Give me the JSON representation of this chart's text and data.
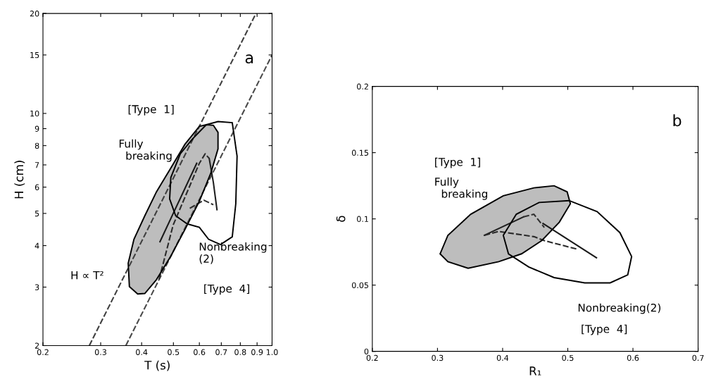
{
  "chart_data": [
    {
      "type": "line",
      "xlabel": "T (s)",
      "ylabel": "H (cm)",
      "log": "xy",
      "xlim": [
        0.2,
        1.0
      ],
      "ylim": [
        2,
        20
      ],
      "xticks": [
        0.2,
        0.3,
        0.4,
        0.5,
        0.6,
        0.7,
        0.8,
        0.9,
        {
          "value": 1.0,
          "label": "1.0"
        }
      ],
      "yticks": [
        2,
        3,
        4,
        5,
        6,
        7,
        8,
        9,
        10,
        15,
        20
      ],
      "grid": false,
      "legend": false,
      "series": [
        {
          "type": "area",
          "color": "#ffffff",
          "x": [
            0.63,
            0.684,
            0.756,
            0.782,
            0.775,
            0.756,
            0.696,
            0.64,
            0.6,
            0.551,
            0.508,
            0.487,
            0.491,
            0.525,
            0.57,
            0.63
          ],
          "values": [
            9.25,
            9.45,
            9.38,
            7.44,
            5.35,
            4.25,
            4.03,
            4.18,
            4.54,
            4.65,
            4.92,
            5.53,
            6.41,
            7.56,
            8.35,
            9.25
          ]
        },
        {
          "color": "#404040",
          "line_style": "dashed",
          "x": [
            0.277,
            0.893
          ],
          "values": [
            2,
            20
          ]
        },
        {
          "color": "#4a4a4a",
          "line_style": "dashed",
          "x": [
            0.358,
            1.0
          ],
          "values": [
            2,
            15.0
          ]
        },
        {
          "color": "#1a1a1a",
          "line_style": "solid",
          "x": [
            0.589,
            0.455
          ],
          "values": [
            7.08,
            4.11
          ]
        },
        {
          "color": "#202020",
          "line_style": "solid",
          "x": [
            0.679,
            0.662,
            0.643
          ],
          "values": [
            5.13,
            6.2,
            7.32
          ]
        },
        {
          "color": "#2a2a2a",
          "line_style": "dashed",
          "x": [
            0.452,
            0.499,
            0.6,
            0.625,
            0.643
          ],
          "values": [
            3.16,
            4.61,
            7.08,
            7.56,
            7.32
          ]
        },
        {
          "color": "#303030",
          "line_style": "dashed",
          "x": [
            0.561,
            0.619,
            0.662
          ],
          "values": [
            5.18,
            5.48,
            5.31
          ]
        },
        {
          "type": "area",
          "color": "#bdbdbd",
          "x": [
            0.6,
            0.542,
            0.491,
            0.444,
            0.409,
            0.379,
            0.364,
            0.367,
            0.389,
            0.409,
            0.444,
            0.491,
            0.542,
            0.6,
            0.651,
            0.684,
            0.684,
            0.662,
            0.63,
            0.6
          ],
          "values": [
            9.14,
            8.07,
            6.85,
            5.81,
            4.92,
            4.18,
            3.54,
            3.01,
            2.86,
            2.87,
            3.16,
            3.72,
            4.47,
            5.44,
            6.63,
            7.82,
            8.77,
            9.21,
            9.25,
            9.14
          ]
        }
      ],
      "annotations": [
        "a",
        "[Type  1]",
        "Fully\n  breaking",
        "Nonbreaking\n(2)",
        "[Type  4]",
        "H ∝ T²"
      ]
    },
    {
      "type": "line",
      "xlabel": "R₁",
      "ylabel": "δ",
      "xlim": [
        0.2,
        0.7
      ],
      "ylim": [
        0,
        0.2
      ],
      "xticks": [
        0.2,
        0.3,
        0.4,
        0.5,
        0.6,
        0.7
      ],
      "yticks": [
        0,
        0.05,
        0.1,
        0.15,
        0.2
      ],
      "grid": false,
      "legend": false,
      "series": [
        {
          "type": "area",
          "color": "#ffffff",
          "x": [
            0.401,
            0.421,
            0.456,
            0.502,
            0.545,
            0.58,
            0.598,
            0.592,
            0.565,
            0.526,
            0.479,
            0.44,
            0.409,
            0.401
          ],
          "values": [
            0.0876,
            0.1035,
            0.1124,
            0.1138,
            0.1055,
            0.0896,
            0.0716,
            0.0577,
            0.0517,
            0.0517,
            0.0557,
            0.0637,
            0.0736,
            0.0876
          ]
        },
        {
          "color": "#1a1a1a",
          "line_style": "solid",
          "x": [
            0.544,
            0.462
          ],
          "values": [
            0.0706,
            0.0965
          ]
        },
        {
          "color": "#202020",
          "line_style": "solid",
          "x": [
            0.432,
            0.372
          ],
          "values": [
            0.1015,
            0.0876
          ]
        },
        {
          "color": "#2a2a2a",
          "line_style": "dashed",
          "x": [
            0.372,
            0.394,
            0.448,
            0.464,
            0.514
          ],
          "values": [
            0.0876,
            0.0905,
            0.0866,
            0.0836,
            0.0772
          ]
        },
        {
          "color": "#303030",
          "line_style": "dashed",
          "x": [
            0.432,
            0.448,
            0.464
          ],
          "values": [
            0.1015,
            0.1035,
            0.0935
          ]
        },
        {
          "type": "area",
          "color": "#bdbdbd",
          "x": [
            0.304,
            0.316,
            0.351,
            0.401,
            0.448,
            0.479,
            0.499,
            0.504,
            0.487,
            0.46,
            0.429,
            0.394,
            0.347,
            0.316,
            0.304
          ],
          "values": [
            0.0736,
            0.0876,
            0.1035,
            0.1174,
            0.1234,
            0.125,
            0.1204,
            0.1114,
            0.0975,
            0.0836,
            0.0736,
            0.0677,
            0.0627,
            0.0677,
            0.0736
          ]
        }
      ],
      "annotations": [
        "b",
        "[Type  1]",
        "Fully\n  breaking",
        "Nonbreaking(2)",
        "[Type  4]"
      ]
    }
  ]
}
